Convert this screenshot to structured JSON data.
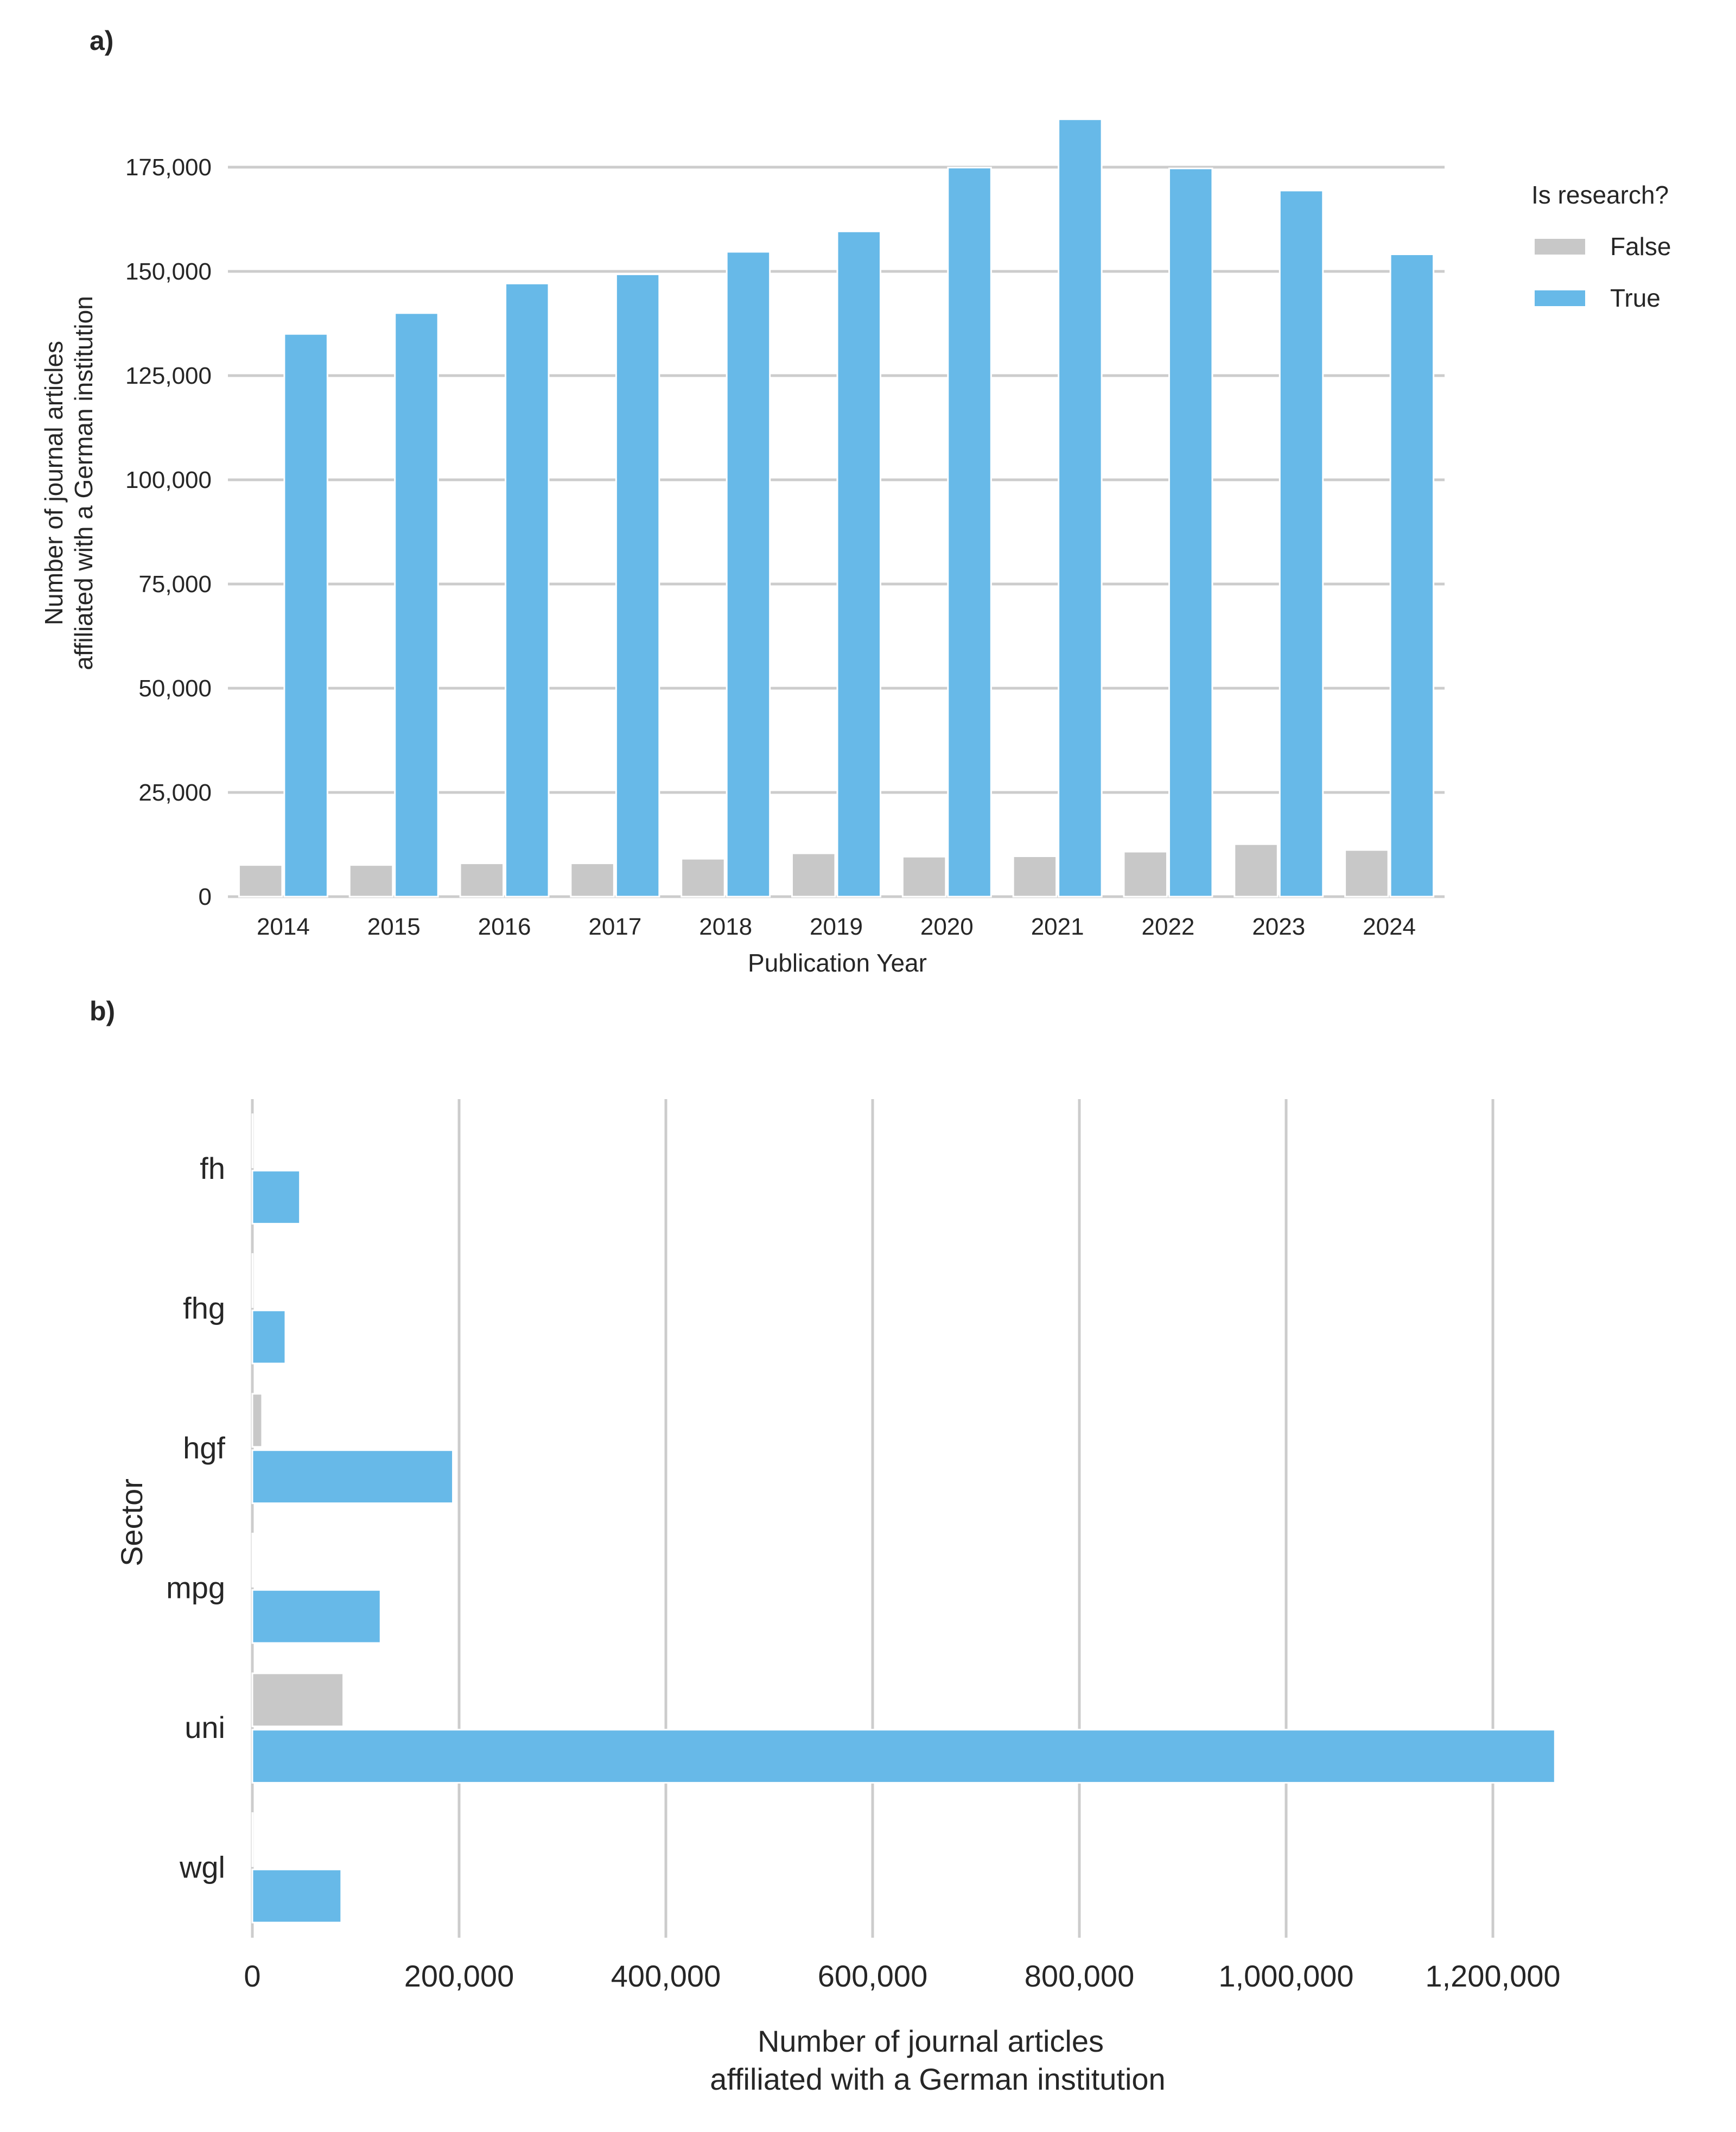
{
  "chart_data": [
    {
      "panel": "a)",
      "type": "bar",
      "orientation": "vertical",
      "categories": [
        "2014",
        "2015",
        "2016",
        "2017",
        "2018",
        "2019",
        "2020",
        "2021",
        "2022",
        "2023",
        "2024"
      ],
      "series": [
        {
          "name": "False",
          "color": "#c8c8c8",
          "values": [
            7600,
            7600,
            8000,
            8000,
            9100,
            10400,
            9600,
            9700,
            10800,
            12600,
            11200
          ]
        },
        {
          "name": "True",
          "color": "#67b9e8",
          "values": [
            135000,
            140000,
            147100,
            149300,
            154700,
            159600,
            174900,
            186500,
            174700,
            169400,
            154100
          ]
        }
      ],
      "xlabel": "Publication Year",
      "ylabel": [
        "Number of journal articles",
        "affiliated with a German institution"
      ],
      "yticks": [
        0,
        25000,
        50000,
        75000,
        100000,
        125000,
        150000,
        175000
      ],
      "ytick_labels": [
        "0",
        "25,000",
        "50,000",
        "75,000",
        "100,000",
        "125,000",
        "150,000",
        "175,000"
      ],
      "ylim": [
        0,
        190000
      ],
      "grid": "horizontal",
      "legend": {
        "title": "Is research?",
        "entries": [
          "False",
          "True"
        ],
        "placement": "right"
      }
    },
    {
      "panel": "b)",
      "type": "bar",
      "orientation": "horizontal",
      "categories": [
        "fh",
        "fhg",
        "hgf",
        "mpg",
        "uni",
        "wgl"
      ],
      "series": [
        {
          "name": "False",
          "color": "#c8c8c8",
          "values": [
            300,
            300,
            9400,
            1000,
            88000,
            400
          ]
        },
        {
          "name": "True",
          "color": "#67b9e8",
          "values": [
            46000,
            32000,
            194000,
            124000,
            1260000,
            86000
          ]
        }
      ],
      "xlabel": [
        "Number of journal articles",
        "affiliated with a German institution"
      ],
      "ylabel": "Sector",
      "xticks": [
        0,
        200000,
        400000,
        600000,
        800000,
        1000000,
        1200000
      ],
      "xtick_labels": [
        "0",
        "200,000",
        "400,000",
        "600,000",
        "800,000",
        "1,000,000",
        "1,200,000"
      ],
      "xlim": [
        0,
        1300000
      ],
      "grid": "vertical"
    }
  ]
}
